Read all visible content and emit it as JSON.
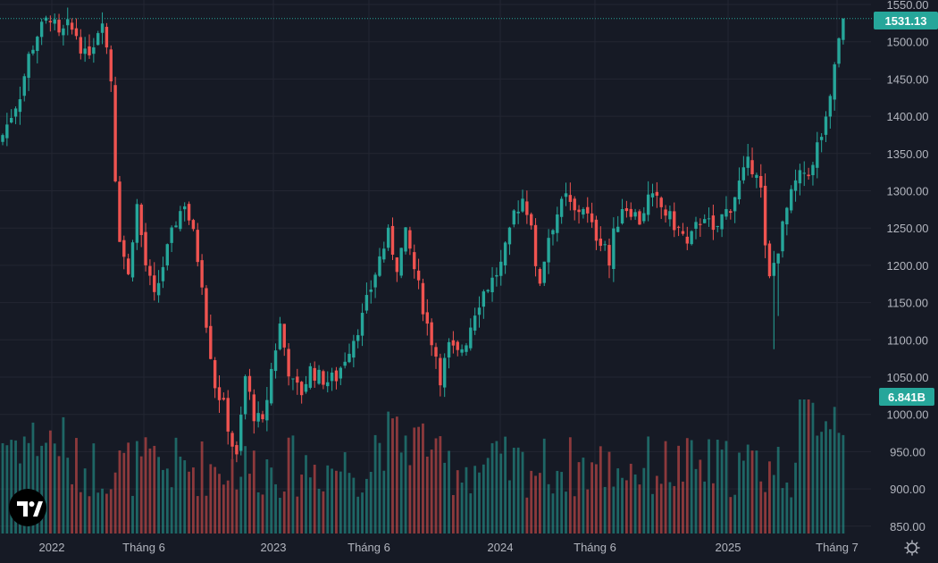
{
  "chart_data": {
    "type": "candlestick",
    "x_ticks": [
      "2022",
      "Tháng 6",
      "2023",
      "Tháng 6",
      "2024",
      "Tháng 6",
      "2025",
      "Tháng 7"
    ],
    "y_ticks": [
      "1550.00",
      "1500.00",
      "1450.00",
      "1400.00",
      "1350.00",
      "1300.00",
      "1250.00",
      "1200.00",
      "1150.00",
      "1100.00",
      "1050.00",
      "1000.00",
      "950.00",
      "900.00",
      "850.00"
    ],
    "ylim": [
      845,
      1555
    ],
    "last_price_label": "1531.13",
    "last_price": 1531.13,
    "volume_label": "6.841B",
    "close_path": [
      [
        0,
        1375
      ],
      [
        4,
        1430
      ],
      [
        6,
        1480
      ],
      [
        8,
        1510
      ],
      [
        11,
        1535
      ],
      [
        13,
        1505
      ],
      [
        15,
        1520
      ],
      [
        17,
        1510
      ],
      [
        19,
        1480
      ],
      [
        21,
        1500
      ],
      [
        23,
        1535
      ],
      [
        25,
        1450
      ],
      [
        26,
        1320
      ],
      [
        27,
        1240
      ],
      [
        29,
        1185
      ],
      [
        30,
        1240
      ],
      [
        31,
        1280
      ],
      [
        33,
        1200
      ],
      [
        35,
        1155
      ],
      [
        37,
        1200
      ],
      [
        40,
        1260
      ],
      [
        42,
        1285
      ],
      [
        44,
        1240
      ],
      [
        46,
        1180
      ],
      [
        47,
        1125
      ],
      [
        49,
        1040
      ],
      [
        51,
        1010
      ],
      [
        53,
        960
      ],
      [
        54,
        940
      ],
      [
        56,
        1050
      ],
      [
        58,
        1000
      ],
      [
        60,
        985
      ],
      [
        62,
        1060
      ],
      [
        64,
        1120
      ],
      [
        66,
        1060
      ],
      [
        67,
        1040
      ],
      [
        69,
        1030
      ],
      [
        71,
        1060
      ],
      [
        73,
        1050
      ],
      [
        75,
        1045
      ],
      [
        77,
        1050
      ],
      [
        80,
        1090
      ],
      [
        83,
        1130
      ],
      [
        85,
        1170
      ],
      [
        87,
        1210
      ],
      [
        89,
        1240
      ],
      [
        91,
        1200
      ],
      [
        93,
        1240
      ],
      [
        94,
        1220
      ],
      [
        96,
        1170
      ],
      [
        98,
        1120
      ],
      [
        100,
        1080
      ],
      [
        101,
        1050
      ],
      [
        103,
        1090
      ],
      [
        105,
        1080
      ],
      [
        107,
        1100
      ],
      [
        109,
        1140
      ],
      [
        111,
        1165
      ],
      [
        113,
        1180
      ],
      [
        115,
        1200
      ],
      [
        117,
        1240
      ],
      [
        118,
        1270
      ],
      [
        120,
        1290
      ],
      [
        122,
        1260
      ],
      [
        123,
        1190
      ],
      [
        124,
        1180
      ],
      [
        126,
        1240
      ],
      [
        128,
        1270
      ],
      [
        130,
        1290
      ],
      [
        132,
        1270
      ],
      [
        134,
        1280
      ],
      [
        136,
        1250
      ],
      [
        137,
        1240
      ],
      [
        139,
        1230
      ],
      [
        140,
        1200
      ],
      [
        141,
        1240
      ],
      [
        143,
        1280
      ],
      [
        145,
        1275
      ],
      [
        147,
        1260
      ],
      [
        149,
        1290
      ],
      [
        151,
        1285
      ],
      [
        153,
        1270
      ],
      [
        155,
        1255
      ],
      [
        157,
        1240
      ],
      [
        158,
        1225
      ],
      [
        160,
        1250
      ],
      [
        162,
        1270
      ],
      [
        164,
        1240
      ],
      [
        166,
        1265
      ],
      [
        168,
        1280
      ],
      [
        170,
        1310
      ],
      [
        172,
        1335
      ],
      [
        174,
        1330
      ],
      [
        175,
        1300
      ],
      [
        176,
        1220
      ],
      [
        177,
        1180
      ],
      [
        179,
        1225
      ],
      [
        181,
        1275
      ],
      [
        183,
        1310
      ],
      [
        185,
        1325
      ],
      [
        187,
        1330
      ],
      [
        188,
        1360
      ],
      [
        190,
        1390
      ],
      [
        191,
        1420
      ],
      [
        192,
        1470
      ],
      [
        193,
        1500
      ],
      [
        194,
        1531.13
      ]
    ],
    "series": [
      {
        "name": "",
        "color_up": "#26a69a",
        "color_down": "#ef5350"
      }
    ],
    "grid": true,
    "last_price_line": "dotted"
  }
}
